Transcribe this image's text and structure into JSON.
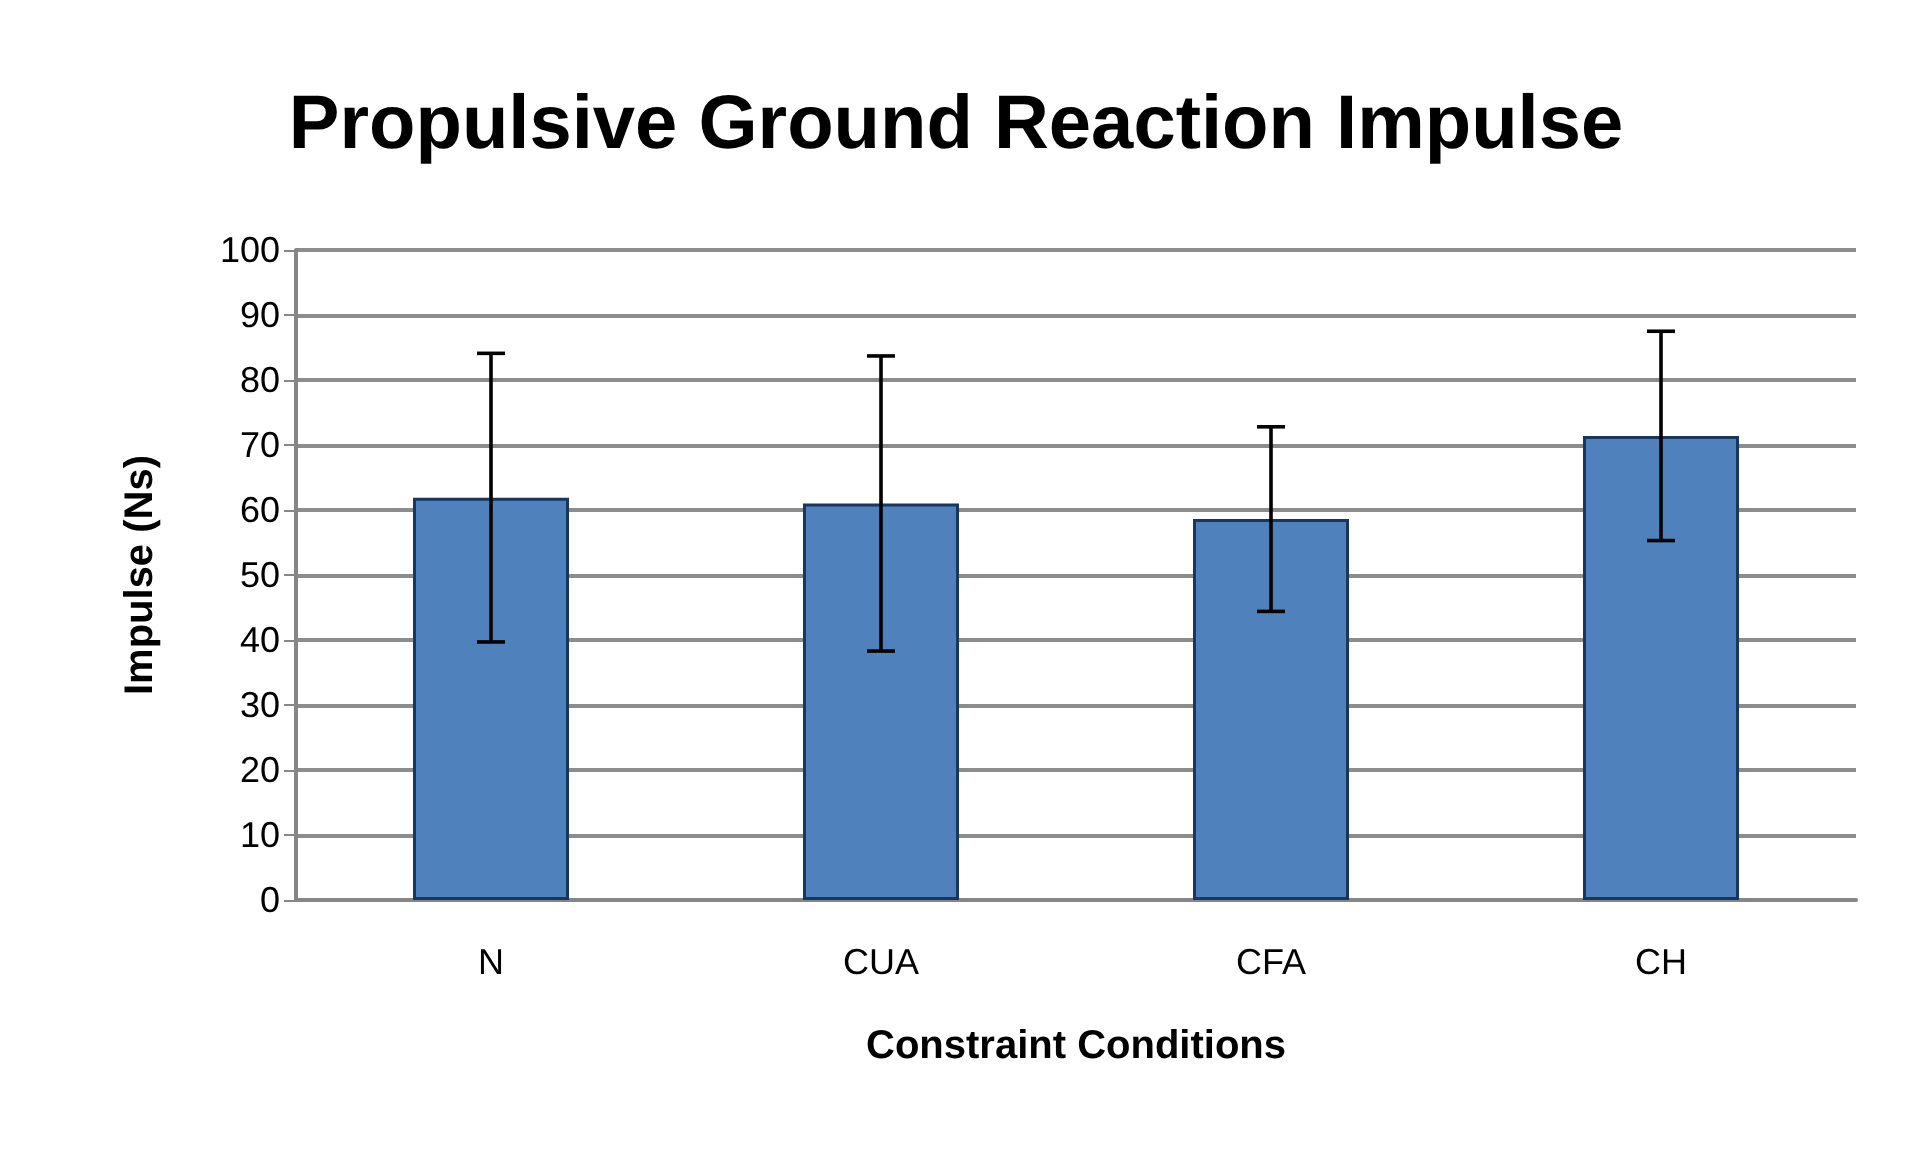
{
  "chart_data": {
    "type": "bar",
    "title": "Propulsive Ground Reaction Impulse",
    "xlabel": "Constraint Conditions",
    "ylabel": "Impulse (Ns)",
    "categories": [
      "N",
      "CUA",
      "CFA",
      "CH"
    ],
    "values": [
      61.9,
      61.0,
      58.6,
      71.4
    ],
    "errors": [
      22.2,
      22.7,
      14.2,
      16.1
    ],
    "color": "#4f81bd",
    "ylim": [
      0,
      100
    ],
    "yticks": [
      0,
      10,
      20,
      30,
      40,
      50,
      60,
      70,
      80,
      90,
      100
    ],
    "grid": "y"
  }
}
